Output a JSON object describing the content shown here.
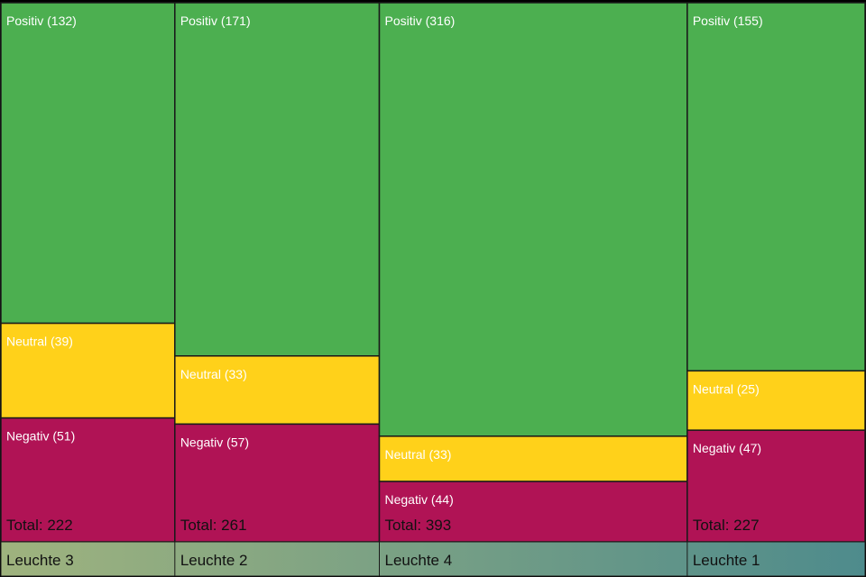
{
  "chart_data": {
    "type": "marimekko",
    "columns": [
      {
        "name": "Leuchte 3",
        "total_label": "Total: 222",
        "segments": [
          {
            "name": "Positiv",
            "value": 132,
            "label": "Positiv (132)"
          },
          {
            "name": "Neutral",
            "value": 39,
            "label": "Neutral (39)"
          },
          {
            "name": "Negativ",
            "value": 51,
            "label": "Negativ (51)"
          }
        ]
      },
      {
        "name": "Leuchte 2",
        "total_label": "Total: 261",
        "segments": [
          {
            "name": "Positiv",
            "value": 171,
            "label": "Positiv (171)"
          },
          {
            "name": "Neutral",
            "value": 33,
            "label": "Neutral (33)"
          },
          {
            "name": "Negativ",
            "value": 57,
            "label": "Negativ (57)"
          }
        ]
      },
      {
        "name": "Leuchte 4",
        "total_label": "Total: 393",
        "segments": [
          {
            "name": "Positiv",
            "value": 316,
            "label": "Positiv (316)"
          },
          {
            "name": "Neutral",
            "value": 33,
            "label": "Neutral (33)"
          },
          {
            "name": "Negativ",
            "value": 44,
            "label": "Negativ (44)"
          }
        ]
      },
      {
        "name": "Leuchte 1",
        "total_label": "Total: 227",
        "segments": [
          {
            "name": "Positiv",
            "value": 155,
            "label": "Positiv (155)"
          },
          {
            "name": "Neutral",
            "value": 25,
            "label": "Neutral (25)"
          },
          {
            "name": "Negativ",
            "value": 47,
            "label": "Negativ (47)"
          }
        ]
      }
    ],
    "colors": {
      "Positiv": "#4caf50",
      "Neutral": "#ffd11a",
      "Negativ": "#b01355",
      "border": "#1a1a1a",
      "footer_start": "#9fb37e",
      "footer_end": "#4e8b8c"
    },
    "legend": "none",
    "grid": false
  }
}
